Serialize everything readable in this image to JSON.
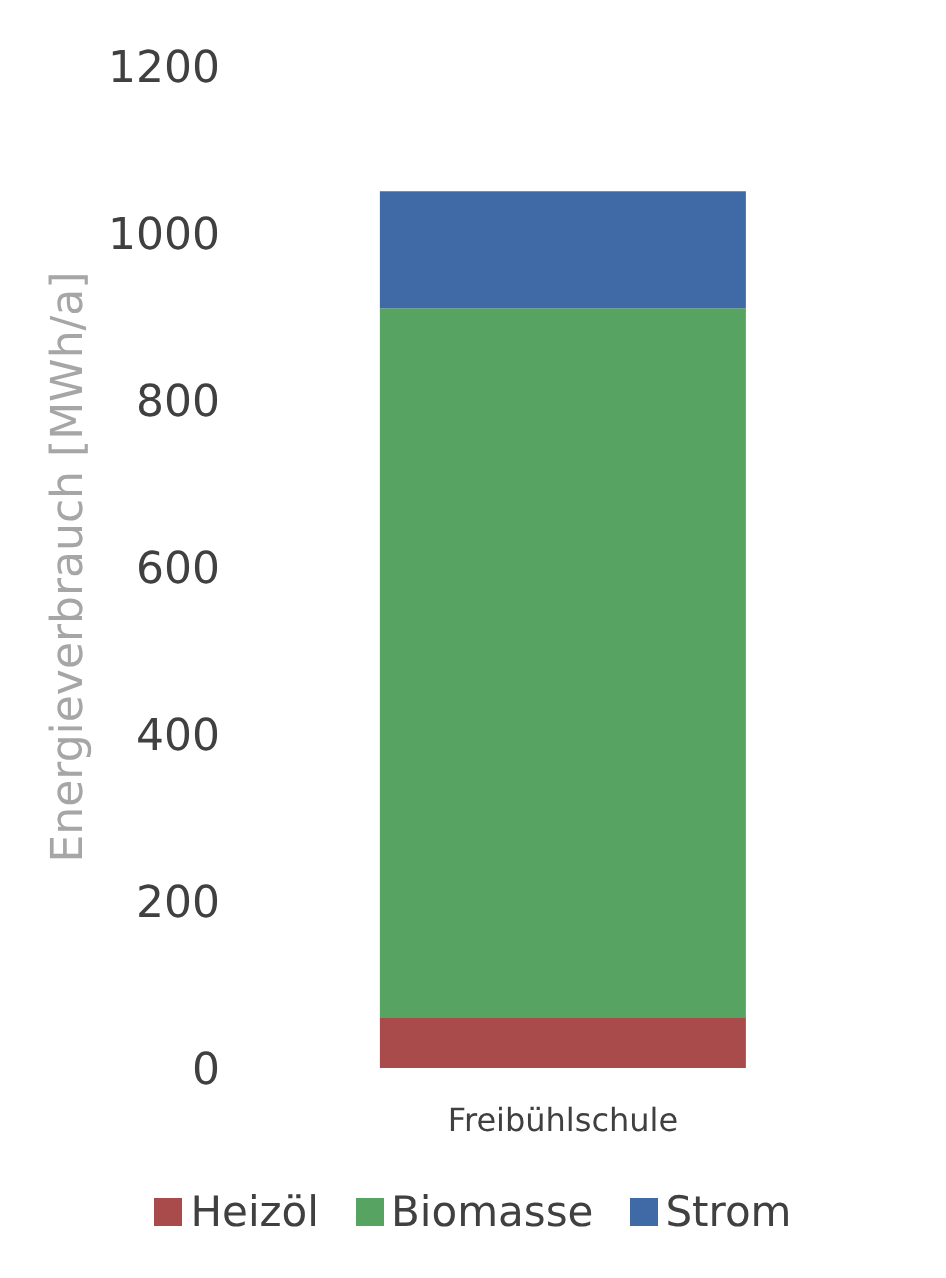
{
  "chart_data": {
    "type": "bar",
    "stacked": true,
    "ylabel": "Energieverbrauch [MWh/a]",
    "categories": [
      "Freibühlschule"
    ],
    "series": [
      {
        "name": "Heizöl",
        "color": "#a94b4b",
        "values": [
          60
        ]
      },
      {
        "name": "Biomasse",
        "color": "#57a362",
        "values": [
          850
        ]
      },
      {
        "name": "Strom",
        "color": "#3f6aa6",
        "values": [
          140
        ]
      }
    ],
    "ylim": [
      0,
      1200
    ],
    "yticks": [
      0,
      200,
      400,
      600,
      800,
      1000,
      1200
    ],
    "grid": false,
    "legend": "bottom"
  }
}
